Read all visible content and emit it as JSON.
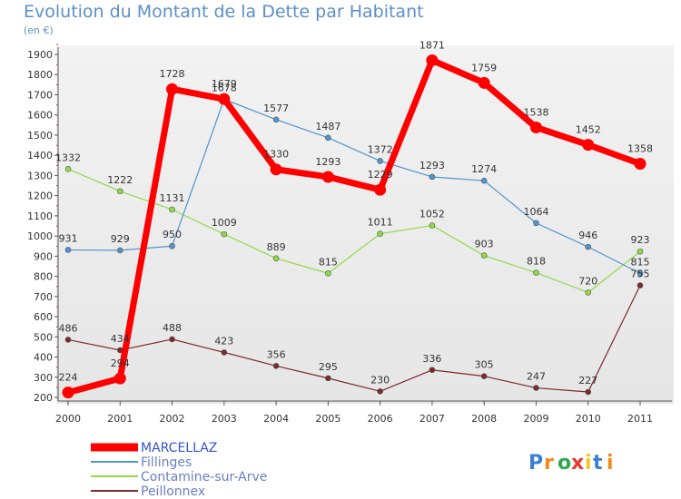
{
  "chart_data": {
    "type": "line",
    "title": "Evolution du Montant de la Dette par Habitant",
    "subtitle": "(en €)",
    "x": [
      "2000",
      "2001",
      "2002",
      "2003",
      "2004",
      "2005",
      "2006",
      "2007",
      "2008",
      "2009",
      "2010",
      "2011"
    ],
    "ylim": [
      200,
      1900
    ],
    "yticks": [
      200,
      300,
      400,
      500,
      600,
      700,
      800,
      900,
      1000,
      1100,
      1200,
      1300,
      1400,
      1500,
      1600,
      1700,
      1800,
      1900
    ],
    "grid": false,
    "legend_position": "bottom-left",
    "series": [
      {
        "name": "MARCELLAZ",
        "color": "#ff0000",
        "values": [
          224,
          294,
          1728,
          1679,
          1330,
          1293,
          1229,
          1871,
          1759,
          1538,
          1452,
          1358
        ]
      },
      {
        "name": "Fillinges",
        "color": "#4f94cd",
        "values": [
          931,
          929,
          950,
          1678,
          1577,
          1487,
          1372,
          1293,
          1274,
          1064,
          946,
          815
        ]
      },
      {
        "name": "Contamine-sur-Arve",
        "color": "#90d94a",
        "values": [
          1332,
          1222,
          1131,
          1009,
          889,
          815,
          1011,
          1052,
          903,
          818,
          720,
          923
        ]
      },
      {
        "name": "Peillonnex",
        "color": "#7b2a2a",
        "values": [
          486,
          434,
          488,
          423,
          356,
          295,
          230,
          336,
          305,
          247,
          227,
          755
        ]
      }
    ]
  },
  "watermark": {
    "text": "Proxiti"
  }
}
